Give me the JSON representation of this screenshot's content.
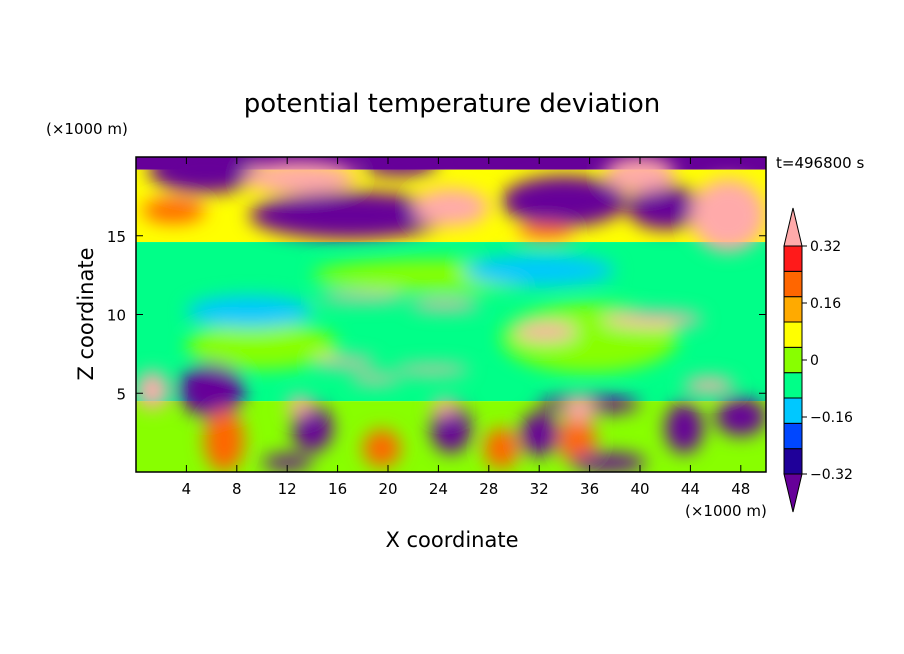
{
  "chart_data": {
    "type": "heatmap",
    "title": "potential temperature deviation",
    "xlabel": "X coordinate",
    "ylabel": "Z coordinate",
    "x_unit": "(×1000 m)",
    "y_unit": "(×1000 m)",
    "time_label": "t=496800 s",
    "xlim": [
      0,
      50
    ],
    "ylim": [
      0,
      20
    ],
    "x_ticks": [
      4,
      8,
      12,
      16,
      20,
      24,
      28,
      32,
      36,
      40,
      44,
      48
    ],
    "y_ticks": [
      5,
      10,
      15
    ],
    "colorbar": {
      "levels": [
        -0.4,
        -0.32,
        -0.24,
        -0.16,
        -0.08,
        0,
        0.08,
        0.16,
        0.24,
        0.32,
        0.4
      ],
      "tick_labels": [
        "0.32",
        "0.16",
        "0",
        "−0.16",
        "−0.32"
      ],
      "tick_values": [
        0.32,
        0.16,
        0,
        -0.16,
        -0.32
      ],
      "colors": [
        "#660099",
        "#1f0099",
        "#0047ff",
        "#00c8ff",
        "#00ff88",
        "#88ff00",
        "#ffff00",
        "#ffaa00",
        "#ff6600",
        "#ff1a1a",
        "#ffaaaa"
      ]
    },
    "features": [
      {
        "kind": "band",
        "z": [
          19.2,
          20
        ],
        "value": -0.35
      },
      {
        "kind": "band",
        "z": [
          14.6,
          19.2
        ],
        "value": 0.1
      },
      {
        "kind": "band",
        "z": [
          4.5,
          14.6
        ],
        "value": -0.05
      },
      {
        "kind": "band",
        "z": [
          0,
          4.5
        ],
        "value": 0.05
      },
      {
        "kind": "blob",
        "x": 5.5,
        "z": 19.2,
        "rx": 4.5,
        "rz": 1.5,
        "value": -0.38
      },
      {
        "kind": "blob",
        "x": 17,
        "z": 16.3,
        "rx": 8,
        "rz": 1.5,
        "value": -0.38
      },
      {
        "kind": "blob",
        "x": 21,
        "z": 19.5,
        "rx": 3,
        "rz": 0.7,
        "value": -0.38
      },
      {
        "kind": "blob",
        "x": 34,
        "z": 17.2,
        "rx": 5,
        "rz": 1.6,
        "value": -0.38
      },
      {
        "kind": "blob",
        "x": 42,
        "z": 16.8,
        "rx": 3,
        "rz": 1.4,
        "value": -0.38
      },
      {
        "kind": "blob",
        "x": 25,
        "z": 16.8,
        "rx": 3,
        "rz": 1.2,
        "value": 0.42
      },
      {
        "kind": "blob",
        "x": 13,
        "z": 18.7,
        "rx": 4.5,
        "rz": 1.0,
        "value": 0.42
      },
      {
        "kind": "blob",
        "x": 40,
        "z": 18.9,
        "rx": 2.8,
        "rz": 1.1,
        "value": 0.42
      },
      {
        "kind": "blob",
        "x": 47,
        "z": 16.3,
        "rx": 3,
        "rz": 2.3,
        "value": 0.42
      },
      {
        "kind": "blob",
        "x": 3,
        "z": 16.6,
        "rx": 2.5,
        "rz": 0.8,
        "value": 0.28
      },
      {
        "kind": "blob",
        "x": 32.5,
        "z": 15.3,
        "rx": 2.2,
        "rz": 0.5,
        "value": 0.3
      },
      {
        "kind": "blob",
        "x": 24,
        "z": 12.5,
        "rx": 10,
        "rz": 1.0,
        "value": 0.04
      },
      {
        "kind": "blob",
        "x": 32,
        "z": 12.8,
        "rx": 6,
        "rz": 1.0,
        "value": -0.12
      },
      {
        "kind": "blob",
        "x": 36,
        "z": 8.5,
        "rx": 7,
        "rz": 2.2,
        "value": 0.04
      },
      {
        "kind": "blob",
        "x": 10,
        "z": 8,
        "rx": 6,
        "rz": 1.5,
        "value": 0.04
      },
      {
        "kind": "blob",
        "x": 9,
        "z": 10.2,
        "rx": 5,
        "rz": 1.0,
        "value": -0.1
      },
      {
        "kind": "blob",
        "x": 41,
        "z": 9.7,
        "rx": 4,
        "rz": 0.5,
        "value": 0.42
      },
      {
        "kind": "blob",
        "x": 32.5,
        "z": 8.9,
        "rx": 2.5,
        "rz": 0.6,
        "value": 0.42
      },
      {
        "kind": "blob",
        "x": 18,
        "z": 11.1,
        "rx": 3.5,
        "rz": 0.3,
        "value": 0.42
      },
      {
        "kind": "blob",
        "x": 24.5,
        "z": 10.6,
        "rx": 2.8,
        "rz": 0.35,
        "value": 0.42
      },
      {
        "kind": "blob",
        "x": 16.5,
        "z": 7.0,
        "rx": 2.5,
        "rz": 0.35,
        "value": 0.42
      },
      {
        "kind": "blob",
        "x": 23.5,
        "z": 6.5,
        "rx": 3.0,
        "rz": 0.3,
        "value": 0.42
      },
      {
        "kind": "blob",
        "x": 19,
        "z": 5.9,
        "rx": 2.0,
        "rz": 0.3,
        "value": 0.42
      },
      {
        "kind": "blob",
        "x": 45.5,
        "z": 5.5,
        "rx": 2.0,
        "rz": 0.5,
        "value": 0.42
      },
      {
        "kind": "blob",
        "x": 6.0,
        "z": 5.2,
        "rx": 2.6,
        "rz": 1.7,
        "value": -0.38
      },
      {
        "kind": "blob",
        "x": 1.3,
        "z": 5.2,
        "rx": 1.3,
        "rz": 1.2,
        "value": 0.42
      },
      {
        "kind": "blob",
        "x": 36,
        "z": 4.3,
        "rx": 4,
        "rz": 0.6,
        "value": -0.36
      },
      {
        "kind": "blob",
        "x": 48,
        "z": 3.5,
        "rx": 2,
        "rz": 1.2,
        "value": -0.36
      },
      {
        "kind": "blob",
        "x": 14,
        "z": 2.8,
        "rx": 1.6,
        "rz": 1.5,
        "value": -0.35
      },
      {
        "kind": "blob",
        "x": 25,
        "z": 2.8,
        "rx": 1.6,
        "rz": 1.6,
        "value": -0.35
      },
      {
        "kind": "blob",
        "x": 32,
        "z": 2.4,
        "rx": 1.5,
        "rz": 1.4,
        "value": -0.35
      },
      {
        "kind": "blob",
        "x": 43.5,
        "z": 2.8,
        "rx": 1.5,
        "rz": 1.6,
        "value": -0.35
      },
      {
        "kind": "blob",
        "x": 7,
        "z": 2.0,
        "rx": 1.6,
        "rz": 2.0,
        "value": 0.3
      },
      {
        "kind": "blob",
        "x": 19.5,
        "z": 1.5,
        "rx": 1.5,
        "rz": 1.2,
        "value": 0.3
      },
      {
        "kind": "blob",
        "x": 29,
        "z": 1.5,
        "rx": 1.4,
        "rz": 1.3,
        "value": 0.3
      },
      {
        "kind": "blob",
        "x": 35,
        "z": 2.0,
        "rx": 1.5,
        "rz": 1.5,
        "value": 0.3
      },
      {
        "kind": "blob",
        "x": 37.5,
        "z": 0.6,
        "rx": 3,
        "rz": 0.6,
        "value": -0.36
      },
      {
        "kind": "blob",
        "x": 12,
        "z": 0.6,
        "rx": 2,
        "rz": 0.5,
        "value": -0.36
      },
      {
        "kind": "blob",
        "x": 35.2,
        "z": 4.0,
        "rx": 1.2,
        "rz": 0.8,
        "value": 0.42
      },
      {
        "kind": "blob",
        "x": 24.5,
        "z": 4.1,
        "rx": 1.0,
        "rz": 0.5,
        "value": 0.42
      },
      {
        "kind": "blob",
        "x": 13,
        "z": 4.2,
        "rx": 1.0,
        "rz": 0.6,
        "value": 0.42
      }
    ]
  }
}
